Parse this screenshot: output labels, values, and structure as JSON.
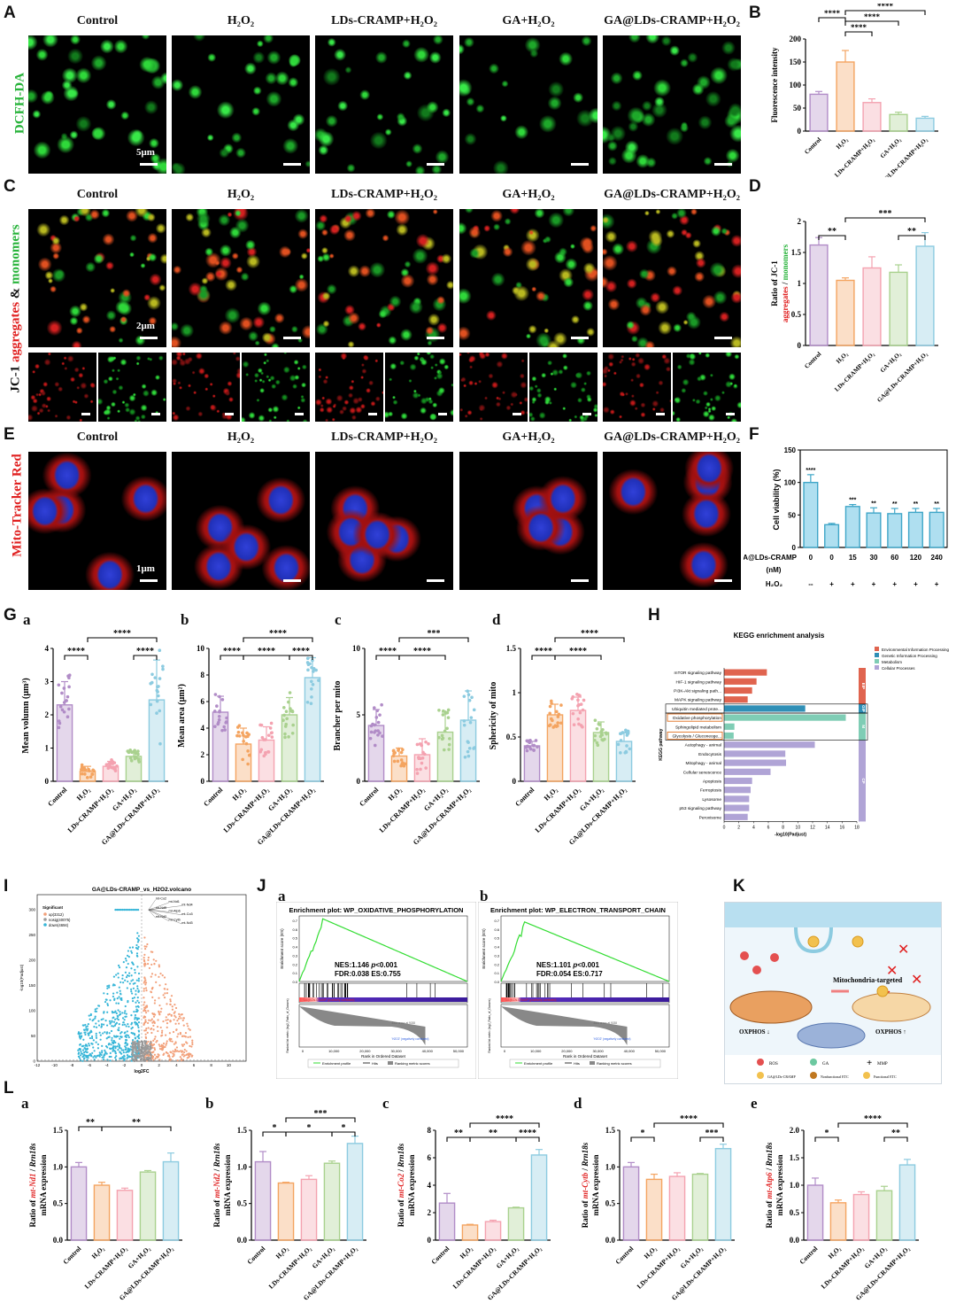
{
  "labels": {
    "A": "A",
    "B": "B",
    "C": "C",
    "D": "D",
    "E": "E",
    "F": "F",
    "G": "G",
    "H": "H",
    "I": "I",
    "J": "J",
    "K": "K",
    "L": "L",
    "Ga": "a",
    "Gb": "b",
    "Gc": "c",
    "Gd": "d",
    "Ja": "a",
    "Jb": "b",
    "La": "a",
    "Lb": "b",
    "Lc": "c",
    "Ld": "d",
    "Le": "e"
  },
  "groups": [
    "Control",
    "H₂O₂",
    "LDs-CRAMP+H₂O₂",
    "GA+H₂O₂",
    "GA@LDs-CRAMP+H₂O₂"
  ],
  "rows": {
    "A": {
      "label": "DCFH-DA",
      "scale": "5μm"
    },
    "C": {
      "label_prefix": "JC-1 ",
      "label_red": "aggregates",
      "label_amp": " & ",
      "label_green": "monomers",
      "scale": "2μm"
    },
    "E": {
      "label": "Mito-Tracker Red",
      "scale": "1μm"
    }
  },
  "charts": {
    "B": {
      "type": "bar",
      "ylabel": "Fluorescence intensity",
      "ylim": [
        0,
        200
      ],
      "yticks": [
        0,
        50,
        100,
        150,
        200
      ],
      "categories": [
        "Control",
        "H₂O₂",
        "LDs-CRAMP+H₂O₂",
        "GA+H₂O₂",
        "GA@LDs-CRAMP+H₂O₂"
      ],
      "values": [
        80,
        150,
        62,
        36,
        28
      ],
      "errors": [
        6,
        25,
        8,
        5,
        4
      ],
      "sig": [
        "****",
        "****",
        "****",
        "****"
      ]
    },
    "D": {
      "type": "bar",
      "ylabel_black": "Ratio of JC-1",
      "ylabel_red": "aggregates",
      "ylabel_slash": " / ",
      "ylabel_green": "monomers",
      "ylim": [
        0,
        2.0
      ],
      "yticks": [
        0.0,
        0.5,
        1.0,
        1.5,
        2.0
      ],
      "categories": [
        "Control",
        "H₂O₂",
        "LDs-CRAMP+H₂O₂",
        "GA+H₂O₂",
        "GA@LDs-CRAMP+H₂O₂"
      ],
      "values": [
        1.62,
        1.05,
        1.25,
        1.18,
        1.6
      ],
      "errors": [
        0.12,
        0.04,
        0.18,
        0.12,
        0.22
      ],
      "sig": [
        "**",
        "***",
        "**"
      ]
    },
    "F": {
      "type": "bar",
      "ylabel": "Cell viability (%)",
      "ylim": [
        0,
        150
      ],
      "yticks": [
        0,
        50,
        100,
        150
      ],
      "xrow1_label": "GA@LDs-CRAMP",
      "xrow1_unit": "(nM)",
      "xrow1": [
        "0",
        "0",
        "15",
        "30",
        "60",
        "120",
        "240"
      ],
      "xrow2_label": "H₂O₂",
      "xrow2": [
        "--",
        "+",
        "+",
        "+",
        "+",
        "+",
        "+"
      ],
      "values": [
        100,
        35,
        63,
        53,
        52,
        54,
        54
      ],
      "errors": [
        12,
        2,
        3,
        8,
        8,
        6,
        6
      ],
      "sig": [
        "****",
        "",
        "***",
        "**",
        "**",
        "**",
        "**"
      ]
    },
    "Ga": {
      "type": "bar-dots",
      "ylabel": "Mean volumn (μm³)",
      "ylim": [
        0,
        4
      ],
      "yticks": [
        0,
        1,
        2,
        3,
        4
      ],
      "values": [
        2.3,
        0.3,
        0.45,
        0.75,
        2.45
      ],
      "errors": [
        0.7,
        0.15,
        0.15,
        0.15,
        1.2
      ],
      "sig": [
        "****",
        "****",
        "****"
      ]
    },
    "Gb": {
      "type": "bar-dots",
      "ylabel": "Mean area (μm²)",
      "ylim": [
        0,
        10
      ],
      "yticks": [
        0,
        2,
        4,
        6,
        8,
        10
      ],
      "values": [
        5.2,
        2.8,
        3.1,
        5.0,
        7.8
      ],
      "errors": [
        1.2,
        1.2,
        1.0,
        1.3,
        1.5
      ],
      "sig": [
        "****",
        "****",
        "****",
        "****"
      ]
    },
    "Gc": {
      "type": "bar-dots",
      "ylabel": "Brancher per mito",
      "ylim": [
        0,
        10
      ],
      "yticks": [
        0,
        5,
        10
      ],
      "values": [
        4.2,
        1.9,
        2.0,
        3.7,
        4.6
      ],
      "errors": [
        1.2,
        0.6,
        1.2,
        1.5,
        2.2
      ],
      "sig": [
        "****",
        "***",
        "****"
      ]
    },
    "Gd": {
      "type": "bar-dots",
      "ylabel": "Sphericity of mito",
      "ylim": [
        0,
        1.5
      ],
      "yticks": [
        0.0,
        0.5,
        1.0,
        1.5
      ],
      "values": [
        0.4,
        0.75,
        0.8,
        0.55,
        0.45
      ],
      "errors": [
        0.05,
        0.12,
        0.15,
        0.12,
        0.1
      ],
      "sig": [
        "****",
        "****",
        "****"
      ]
    },
    "H": {
      "type": "barh",
      "title": "KEGG enrichment analysis",
      "xlabel": "-log10(Padjust)",
      "ylabel": "KEGG pathway",
      "xlim": [
        0,
        18
      ],
      "xticks": [
        0,
        2,
        4,
        6,
        8,
        10,
        12,
        14,
        16,
        18
      ],
      "legend": [
        "Environmental Information Processing",
        "Genetic Information Processing",
        "Metabolism",
        "Cellular Processes"
      ],
      "colors": [
        "#e0644f",
        "#2f8fb6",
        "#7fcdb5",
        "#b0a4d6"
      ],
      "pathways": [
        "mTOR signaling pathway",
        "HIF-1 signaling pathway",
        "PI3K-Akt signaling path...",
        "MAPK signaling pathway",
        "Ubiquitin mediated prote...",
        "Oxidative phosphorylation",
        "Sphingolipid metabolism",
        "Glycolysis / Gluconeoge...",
        "Autophagy - animal",
        "Endocytosis",
        "Mitophagy - animal",
        "Cellular senescence",
        "Apoptosis",
        "Ferroptosis",
        "Lysosome",
        "p53 signaling pathway",
        "Peroxisome"
      ],
      "values": [
        5.8,
        4.4,
        3.8,
        3.2,
        11,
        16.5,
        1.4,
        1.3,
        12.3,
        8.3,
        8.4,
        6.3,
        3.8,
        3.6,
        3.4,
        3.4,
        3.2
      ],
      "cat": [
        0,
        0,
        0,
        0,
        1,
        2,
        2,
        2,
        3,
        3,
        3,
        3,
        3,
        3,
        3,
        3,
        3
      ],
      "side": [
        "EIP",
        "GIP",
        "M",
        "CP"
      ]
    },
    "I": {
      "type": "scatter",
      "title": "GA@LDs-CRAMP_vs_H2O2.volcano",
      "xlabel": "log2FC",
      "ylabel": "-log10(Padjust)",
      "legend_title": "Significant",
      "legend": [
        "up(3312)",
        "nosig(40075)",
        "down(4694)"
      ],
      "xticks": [
        -12,
        -10,
        -8,
        -6,
        -4,
        -2,
        0,
        2,
        4,
        6,
        8,
        10
      ],
      "yticks": [
        0,
        50,
        100,
        150,
        200,
        250,
        300
      ],
      "genes": [
        "mt-Co2",
        "mt-Nd1",
        "mt-Nd4",
        "mt-Nd5",
        "mt-Atp6",
        "mt-Co3",
        "mt-Nd2",
        "mt-Cytb",
        "mt-Nd3"
      ]
    },
    "Ja": {
      "title": "Enrichment plot: WP_OXIDATIVE_PHOSPHORYLATION",
      "nes": "NES:1.146 ",
      "p": "p",
      "pval": "<0.001",
      "fdr": "FDR:0.038 ES:0.755",
      "ylabel": "Enrichment score (ES)",
      "xlabel": "Rank in Ordered Dataset",
      "ylabel2": "Ranked list metric (log2_Ratio_of_Classes)",
      "pos": "'GA@LDs-CRAMP' (positively correlated)",
      "neg": "'H2O2' (negatively correlated)",
      "zero": "Zero cross at 9038",
      "legend": [
        "Enrichment profile",
        "Hits",
        "Ranking metric scores"
      ],
      "xticks": [
        "0",
        "10,000",
        "20,000",
        "30,000",
        "40,000",
        "50,000"
      ],
      "yticks": [
        "0.0",
        "0.1",
        "0.2",
        "0.3",
        "0.4",
        "0.5",
        "0.6",
        "0.7"
      ]
    },
    "Jb": {
      "title": "Enrichment plot: WP_ELECTRON_TRANSPORT_CHAIN",
      "nes": "NES:1.101 ",
      "p": "p",
      "pval": "<0.001",
      "fdr": "FDR:0.054 ES:0.717",
      "ylabel": "Enrichment score (ES)",
      "xlabel": "Rank in Ordered Dataset",
      "ylabel2": "Ranked list metric (log2_Ratio_of_Classes)",
      "pos": "'GA@LDs-CRAMP' (positively correlated)",
      "neg": "'H2O2' (negatively correlated)",
      "zero": "Zero cross at 9038",
      "legend": [
        "Enrichment profile",
        "Hits",
        "Ranking metric scores"
      ],
      "xticks": [
        "0",
        "10,000",
        "20,000",
        "30,000",
        "40,000",
        "50,000"
      ],
      "yticks": [
        "0.0",
        "0.1",
        "0.2",
        "0.3",
        "0.4",
        "0.5",
        "0.6",
        "0.7"
      ]
    },
    "La": {
      "gene": "mt-Nd1",
      "ylim": [
        0,
        1.5
      ],
      "yticks": [
        "0.0",
        "0.5",
        "1.0",
        "1.5"
      ],
      "values": [
        1.0,
        0.75,
        0.68,
        0.93,
        1.07
      ],
      "errors": [
        0.06,
        0.04,
        0.03,
        0.02,
        0.12
      ],
      "sig": [
        "**",
        "**"
      ]
    },
    "Lb": {
      "gene": "mt-Nd2",
      "ylim": [
        0,
        1.5
      ],
      "yticks": [
        "0.0",
        "0.5",
        "1.0",
        "1.5"
      ],
      "values": [
        1.07,
        0.78,
        0.83,
        1.05,
        1.32
      ],
      "errors": [
        0.14,
        0.01,
        0.05,
        0.03,
        0.1
      ],
      "sig": [
        "*",
        "***",
        "*",
        "*"
      ]
    },
    "Lc": {
      "gene": "mt-Co2",
      "ylim": [
        0,
        8
      ],
      "yticks": [
        "0",
        "2",
        "4",
        "6",
        "8"
      ],
      "values": [
        2.7,
        1.1,
        1.35,
        2.35,
        6.2
      ],
      "errors": [
        0.7,
        0.05,
        0.1,
        0.05,
        0.4
      ],
      "sig": [
        "**",
        "****",
        "**",
        "****"
      ]
    },
    "Ld": {
      "gene": "mt-Cytb",
      "ylim": [
        0,
        1.5
      ],
      "yticks": [
        "0.0",
        "0.5",
        "1.0",
        "1.5"
      ],
      "values": [
        1.0,
        0.83,
        0.87,
        0.9,
        1.25
      ],
      "errors": [
        0.06,
        0.07,
        0.05,
        0.01,
        0.06
      ],
      "sig": [
        "*",
        "****",
        "***"
      ]
    },
    "Le": {
      "gene": "mt-Atp6",
      "ylim": [
        0,
        2.0
      ],
      "yticks": [
        "0.0",
        "0.5",
        "1.0",
        "1.5",
        "2.0"
      ],
      "values": [
        1.0,
        0.68,
        0.83,
        0.9,
        1.37
      ],
      "errors": [
        0.13,
        0.05,
        0.05,
        0.08,
        0.1
      ],
      "sig": [
        "*",
        "****",
        "**"
      ]
    }
  },
  "L_ylabel_prefix": "Ratio of ",
  "L_ylabel_suffix": " / ",
  "L_ylabel_ref": "Rrn18s",
  "L_ylabel_line2": "mRNA expression",
  "schematic": {
    "mito_targeted": "Mitochondria-targeted",
    "oxphos_down": "OXPHOS ↓",
    "oxphos_up": "OXPHOS ↑",
    "legend": [
      "ROS",
      "GA",
      "MMP",
      "GA@LDs-CRAMP",
      "Nonfunctional ETC",
      "Functional ETC"
    ]
  },
  "colors": {
    "control": "#b18cc7",
    "h2o2": "#f4a460",
    "lds": "#f4a2b0",
    "ga": "#a9d18e",
    "gald": "#8ccbe0"
  }
}
